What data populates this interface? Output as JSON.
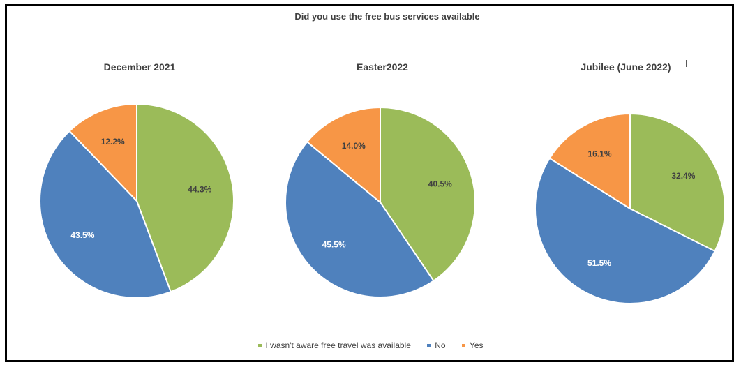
{
  "chart_data": {
    "type": "pie",
    "title": "Did you use the free bus services available",
    "legend": {
      "placement": "bottom",
      "entries": [
        {
          "label": "I wasn't aware free travel was available",
          "color": "#9bbb59"
        },
        {
          "label": "No",
          "color": "#4f81bd"
        },
        {
          "label": "Yes",
          "color": "#f79646"
        }
      ]
    },
    "charts": [
      {
        "title": "December 2021",
        "slices": [
          {
            "label": "I wasn't aware free travel was available",
            "value": 44.3,
            "display": "44.3%",
            "color": "#9bbb59"
          },
          {
            "label": "No",
            "value": 43.5,
            "display": "43.5%",
            "color": "#4f81bd"
          },
          {
            "label": "Yes",
            "value": 12.2,
            "display": "12.2%",
            "color": "#f79646"
          }
        ]
      },
      {
        "title": "Easter2022",
        "slices": [
          {
            "label": "I wasn't aware free travel was available",
            "value": 40.5,
            "display": "40.5%",
            "color": "#9bbb59"
          },
          {
            "label": "No",
            "value": 45.5,
            "display": "45.5%",
            "color": "#4f81bd"
          },
          {
            "label": "Yes",
            "value": 14.0,
            "display": "14.0%",
            "color": "#f79646"
          }
        ]
      },
      {
        "title": "Jubilee (June 2022)",
        "slices": [
          {
            "label": "I wasn't aware free travel was available",
            "value": 32.4,
            "display": "32.4%",
            "color": "#9bbb59"
          },
          {
            "label": "No",
            "value": 51.5,
            "display": "51.5%",
            "color": "#4f81bd"
          },
          {
            "label": "Yes",
            "value": 16.1,
            "display": "16.1%",
            "color": "#f79646"
          }
        ]
      }
    ]
  }
}
